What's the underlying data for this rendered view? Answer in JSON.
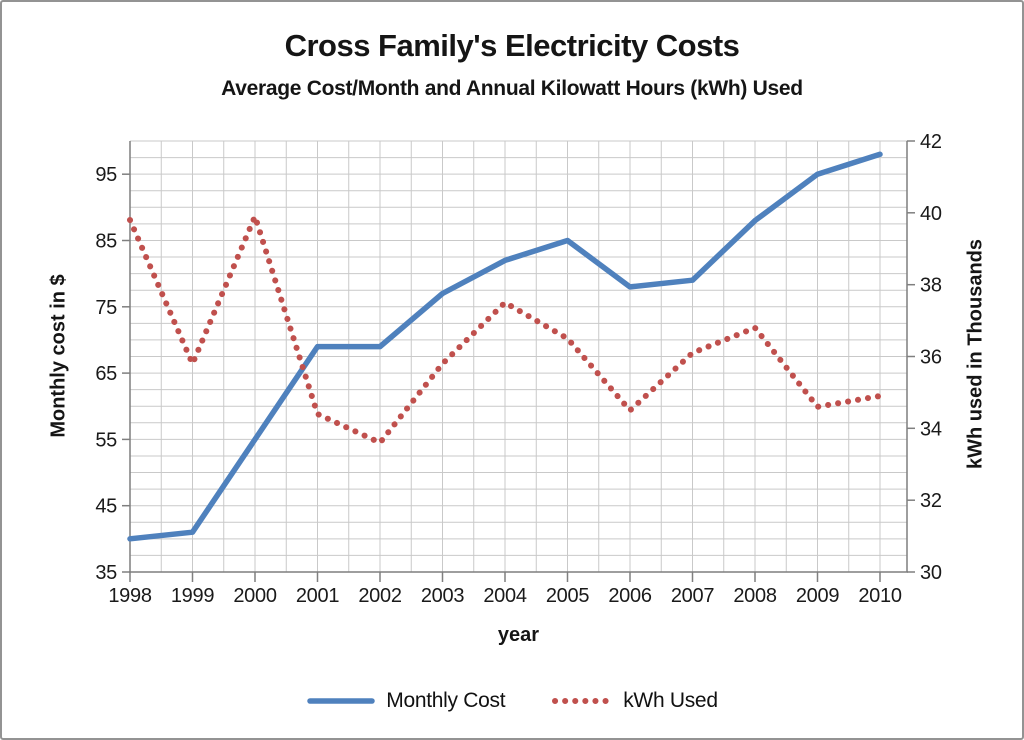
{
  "chart_data": {
    "type": "line",
    "title": "Cross Family's Electricity Costs",
    "subtitle": "Average Cost/Month and Annual Kilowatt Hours (kWh) Used",
    "xlabel": "year",
    "ylabel_left": "Monthly cost in $",
    "ylabel_right": "kWh used in Thousands",
    "x": [
      1998,
      1999,
      2000,
      2001,
      2002,
      2003,
      2004,
      2005,
      2006,
      2007,
      2008,
      2009,
      2010
    ],
    "series": [
      {
        "name": "Monthly Cost",
        "axis": "left",
        "style": "solid",
        "color": "#4F81BD",
        "values": [
          40,
          41,
          55,
          69,
          69,
          77,
          82,
          85,
          78,
          79,
          88,
          95,
          98
        ]
      },
      {
        "name": "kWh Used",
        "axis": "right",
        "style": "dotted",
        "color": "#C0504D",
        "values": [
          39.8,
          35.8,
          39.9,
          34.4,
          33.6,
          35.8,
          37.5,
          36.5,
          34.5,
          36.1,
          36.8,
          34.6,
          34.9
        ]
      }
    ],
    "left_axis": {
      "min": 35,
      "max": 100,
      "minor_step": 2.5,
      "tick_labels": [
        35,
        45,
        55,
        65,
        75,
        85,
        95
      ]
    },
    "right_axis": {
      "min": 30,
      "max": 42,
      "tick_labels": [
        30,
        32,
        34,
        36,
        38,
        40,
        42
      ]
    },
    "grid": true,
    "legend_position": "bottom"
  }
}
